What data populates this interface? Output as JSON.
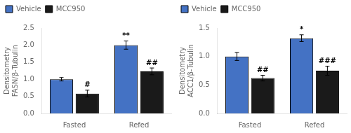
{
  "chart_data": [
    {
      "type": "bar",
      "ylabel": "Densitometry\nFASN/β-Tubulin",
      "categories": [
        "Fasted",
        "Refed"
      ],
      "series": [
        {
          "name": "Vehicle",
          "color": "#4472C4",
          "values": [
            1.0,
            2.0
          ],
          "errors": [
            0.05,
            0.12
          ],
          "annotations": [
            null,
            "**"
          ]
        },
        {
          "name": "MCC950",
          "color": "#1a1a1a",
          "values": [
            0.58,
            1.23
          ],
          "errors": [
            0.1,
            0.1
          ],
          "annotations": [
            "#",
            "##"
          ]
        }
      ],
      "ylim": [
        0.0,
        2.5
      ],
      "yticks": [
        {
          "value": 0.0,
          "label": "0.0"
        },
        0.5,
        {
          "value": 1.0,
          "label": "1.0"
        },
        1.5,
        {
          "value": 2.0,
          "label": "2.0"
        },
        2.5
      ],
      "grid": false,
      "legend": "upper left"
    },
    {
      "type": "bar",
      "ylabel": "Densitometry\nACC1/β-Tubulin",
      "categories": [
        "Fasted",
        "Refed"
      ],
      "series": [
        {
          "name": "Vehicle",
          "color": "#4472C4",
          "values": [
            1.0,
            1.32
          ],
          "errors": [
            0.07,
            0.06
          ],
          "annotations": [
            null,
            "*"
          ]
        },
        {
          "name": "MCC950",
          "color": "#1a1a1a",
          "values": [
            0.62,
            0.75
          ],
          "errors": [
            0.05,
            0.08
          ],
          "annotations": [
            "##",
            "###"
          ]
        }
      ],
      "ylim": [
        0.0,
        1.5
      ],
      "yticks": [
        {
          "value": 0.0,
          "label": "0.0"
        },
        0.5,
        {
          "value": 1.0,
          "label": "1.0"
        },
        1.5
      ],
      "grid": false,
      "legend": "upper left"
    }
  ]
}
